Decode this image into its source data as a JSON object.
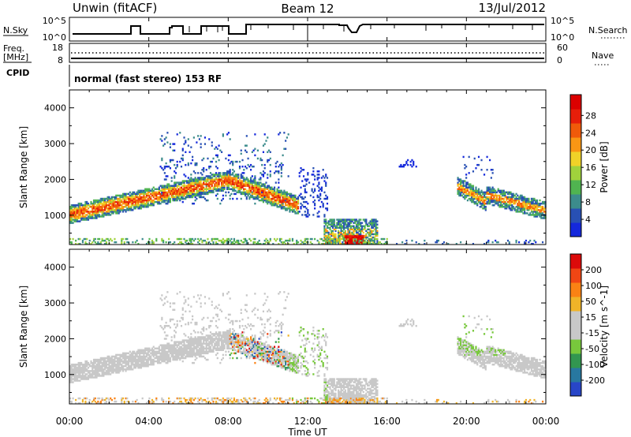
{
  "header": {
    "site": "Unwin (fitACF)",
    "beam": "Beam 12",
    "date": "13/Jul/2012"
  },
  "status": {
    "nsky_label": "N.Sky",
    "nsearch_label": "N.Search",
    "nsky_ticks": [
      "10^5",
      "10^0"
    ],
    "nsearch_ticks": [
      "10^5",
      "10^0"
    ],
    "freq_label": "Freq.",
    "freq_unit": "[MHz]",
    "freq_ticks": [
      "18",
      "8"
    ],
    "nave_label": "Nave",
    "nave_ticks": [
      "60",
      "0"
    ],
    "cpid_label": "CPID",
    "cpid_text": "normal (fast stereo) 153 RF"
  },
  "chart_data": [
    {
      "type": "heatmap",
      "name": "power",
      "ylabel": "Slant Range [km]",
      "ylim": [
        180,
        4500
      ],
      "yticks": [
        "1000",
        "2000",
        "3000",
        "4000"
      ],
      "colorbar": {
        "label": "Power [dB]",
        "ticks": [
          "4",
          "8",
          "12",
          "16",
          "20",
          "24",
          "28"
        ],
        "colors": [
          "#1428dc",
          "#2850b4",
          "#3c8c8c",
          "#50b450",
          "#a0d23c",
          "#f0d228",
          "#fa9614",
          "#f05a0a",
          "#e61e0a",
          "#dc0000"
        ]
      }
    },
    {
      "type": "heatmap",
      "name": "velocity",
      "ylabel": "Slant Range [km]",
      "ylim": [
        180,
        4500
      ],
      "yticks": [
        "1000",
        "2000",
        "3000",
        "4000"
      ],
      "colorbar": {
        "label": "Velocity [m s^-1]",
        "ticks": [
          "200",
          "100",
          "50",
          "15",
          "-15",
          "-50",
          "-100",
          "-200"
        ],
        "colors": [
          "#2846c8",
          "#2878a0",
          "#329650",
          "#78c83c",
          "#c8c8c8",
          "#c8c8c8",
          "#f0b428",
          "#fa8214",
          "#f04614",
          "#dc0a0a"
        ]
      }
    }
  ],
  "xaxis": {
    "label": "Time UT",
    "ticks": [
      "00:00",
      "04:00",
      "08:00",
      "12:00",
      "16:00",
      "20:00",
      "00:00"
    ]
  }
}
